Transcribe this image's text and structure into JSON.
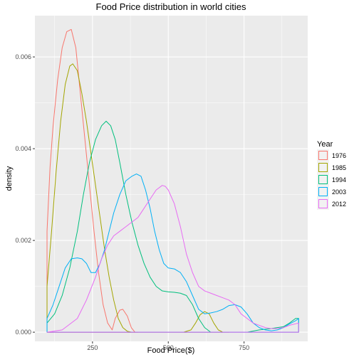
{
  "chart_data": {
    "type": "density",
    "title": "Food Price distribution in world cities",
    "xlabel": "Food Price($)",
    "ylabel": "density",
    "xlim": [
      60,
      960
    ],
    "ylim": [
      -0.0002,
      0.0069
    ],
    "x_ticks": [
      250,
      500,
      750
    ],
    "x_tick_labels": [
      "250",
      "500",
      "750"
    ],
    "y_ticks": [
      0,
      0.002,
      0.004,
      0.006
    ],
    "y_tick_labels": [
      "0.000",
      "0.002",
      "0.004",
      "0.006"
    ],
    "grid": true,
    "legend": {
      "title": "Year",
      "position": "right"
    },
    "series": [
      {
        "name": "1976",
        "color": "#F8766D",
        "points": [
          [
            100,
            0.0022
          ],
          [
            110,
            0.0036
          ],
          [
            120,
            0.0045
          ],
          [
            135,
            0.0055
          ],
          [
            150,
            0.0062
          ],
          [
            165,
            0.00655
          ],
          [
            180,
            0.0066
          ],
          [
            195,
            0.0062
          ],
          [
            210,
            0.0052
          ],
          [
            225,
            0.0042
          ],
          [
            240,
            0.0032
          ],
          [
            255,
            0.0022
          ],
          [
            270,
            0.0013
          ],
          [
            285,
            0.0006
          ],
          [
            300,
            0.0002
          ],
          [
            315,
            5e-05
          ],
          [
            325,
            0.0003
          ],
          [
            340,
            0.00048
          ],
          [
            350,
            0.0005
          ],
          [
            365,
            0.00035
          ],
          [
            378,
            0.0001
          ],
          [
            390,
            0.0
          ],
          [
            400,
            0.0
          ]
        ]
      },
      {
        "name": "1985",
        "color": "#A3A500",
        "points": [
          [
            100,
            0.001
          ],
          [
            115,
            0.0022
          ],
          [
            130,
            0.0035
          ],
          [
            145,
            0.0046
          ],
          [
            160,
            0.0054
          ],
          [
            175,
            0.0058
          ],
          [
            185,
            0.00585
          ],
          [
            200,
            0.0057
          ],
          [
            215,
            0.0052
          ],
          [
            230,
            0.0046
          ],
          [
            245,
            0.0039
          ],
          [
            260,
            0.0032
          ],
          [
            275,
            0.0025
          ],
          [
            290,
            0.0018
          ],
          [
            305,
            0.0012
          ],
          [
            320,
            0.0007
          ],
          [
            335,
            0.0003
          ],
          [
            350,
            0.0001
          ],
          [
            365,
            2e-05
          ],
          [
            380,
            0.0
          ],
          [
            550,
            0.0
          ],
          [
            575,
            5e-05
          ],
          [
            590,
            0.0002
          ],
          [
            605,
            0.00038
          ],
          [
            620,
            0.00045
          ],
          [
            635,
            0.0004
          ],
          [
            650,
            0.0002
          ],
          [
            665,
            5e-05
          ],
          [
            680,
            0.0
          ],
          [
            700,
            0.0
          ]
        ]
      },
      {
        "name": "1994",
        "color": "#00BF7D",
        "points": [
          [
            100,
            0.0002
          ],
          [
            125,
            0.0004
          ],
          [
            150,
            0.0008
          ],
          [
            175,
            0.0014
          ],
          [
            200,
            0.0022
          ],
          [
            220,
            0.003
          ],
          [
            240,
            0.0037
          ],
          [
            260,
            0.0042
          ],
          [
            280,
            0.0045
          ],
          [
            295,
            0.0046
          ],
          [
            310,
            0.0045
          ],
          [
            325,
            0.0042
          ],
          [
            340,
            0.0037
          ],
          [
            360,
            0.003
          ],
          [
            380,
            0.0024
          ],
          [
            400,
            0.0019
          ],
          [
            420,
            0.0015
          ],
          [
            440,
            0.0012
          ],
          [
            460,
            0.001
          ],
          [
            480,
            0.0009
          ],
          [
            500,
            0.00088
          ],
          [
            520,
            0.00087
          ],
          [
            540,
            0.00085
          ],
          [
            560,
            0.0008
          ],
          [
            580,
            0.0006
          ],
          [
            600,
            0.0003
          ],
          [
            620,
            0.0001
          ],
          [
            640,
            0.0
          ],
          [
            760,
            0.0
          ],
          [
            800,
            5e-05
          ],
          [
            840,
            8e-05
          ],
          [
            880,
            0.00012
          ],
          [
            900,
            0.0002
          ],
          [
            920,
            0.0003
          ],
          [
            930,
            0.0003
          ]
        ]
      },
      {
        "name": "2003",
        "color": "#00B0F6",
        "points": [
          [
            100,
            0.0003
          ],
          [
            120,
            0.0006
          ],
          [
            140,
            0.001
          ],
          [
            160,
            0.0014
          ],
          [
            180,
            0.0016
          ],
          [
            200,
            0.00162
          ],
          [
            215,
            0.0016
          ],
          [
            230,
            0.0015
          ],
          [
            245,
            0.0013
          ],
          [
            260,
            0.0013
          ],
          [
            275,
            0.0015
          ],
          [
            290,
            0.0018
          ],
          [
            305,
            0.0022
          ],
          [
            320,
            0.0026
          ],
          [
            340,
            0.003
          ],
          [
            360,
            0.0033
          ],
          [
            380,
            0.0034
          ],
          [
            395,
            0.00345
          ],
          [
            410,
            0.0034
          ],
          [
            425,
            0.0031
          ],
          [
            440,
            0.0027
          ],
          [
            455,
            0.0022
          ],
          [
            470,
            0.0018
          ],
          [
            485,
            0.0015
          ],
          [
            500,
            0.0014
          ],
          [
            520,
            0.00138
          ],
          [
            540,
            0.0013
          ],
          [
            560,
            0.0011
          ],
          [
            580,
            0.0008
          ],
          [
            600,
            0.0005
          ],
          [
            620,
            0.0004
          ],
          [
            640,
            0.00042
          ],
          [
            660,
            0.00045
          ],
          [
            680,
            0.0005
          ],
          [
            700,
            0.00058
          ],
          [
            720,
            0.0006
          ],
          [
            740,
            0.00055
          ],
          [
            760,
            0.0004
          ],
          [
            780,
            0.0002
          ],
          [
            800,
            0.0001
          ],
          [
            820,
            5e-05
          ],
          [
            840,
            3e-05
          ],
          [
            860,
            5e-05
          ],
          [
            880,
            0.0001
          ],
          [
            900,
            0.00018
          ],
          [
            920,
            0.00025
          ],
          [
            930,
            0.0003
          ]
        ]
      },
      {
        "name": "2012",
        "color": "#E76BF3",
        "points": [
          [
            100,
            0.0
          ],
          [
            150,
            5e-05
          ],
          [
            200,
            0.0003
          ],
          [
            230,
            0.0007
          ],
          [
            260,
            0.0012
          ],
          [
            280,
            0.0016
          ],
          [
            300,
            0.0019
          ],
          [
            320,
            0.0021
          ],
          [
            340,
            0.0022
          ],
          [
            360,
            0.0023
          ],
          [
            380,
            0.0024
          ],
          [
            400,
            0.0025
          ],
          [
            420,
            0.0027
          ],
          [
            440,
            0.0029
          ],
          [
            460,
            0.0031
          ],
          [
            480,
            0.0032
          ],
          [
            490,
            0.00318
          ],
          [
            500,
            0.0031
          ],
          [
            520,
            0.0028
          ],
          [
            540,
            0.0023
          ],
          [
            560,
            0.0017
          ],
          [
            580,
            0.0013
          ],
          [
            600,
            0.001
          ],
          [
            620,
            0.0009
          ],
          [
            640,
            0.00085
          ],
          [
            660,
            0.0008
          ],
          [
            680,
            0.00075
          ],
          [
            700,
            0.0007
          ],
          [
            720,
            0.0006
          ],
          [
            740,
            0.0004
          ],
          [
            760,
            0.0003
          ],
          [
            780,
            0.0002
          ],
          [
            800,
            0.00015
          ],
          [
            820,
            0.0001
          ],
          [
            840,
            8e-05
          ],
          [
            860,
            8e-05
          ],
          [
            880,
            0.0001
          ],
          [
            900,
            0.00015
          ],
          [
            930,
            0.0002
          ]
        ]
      }
    ]
  }
}
